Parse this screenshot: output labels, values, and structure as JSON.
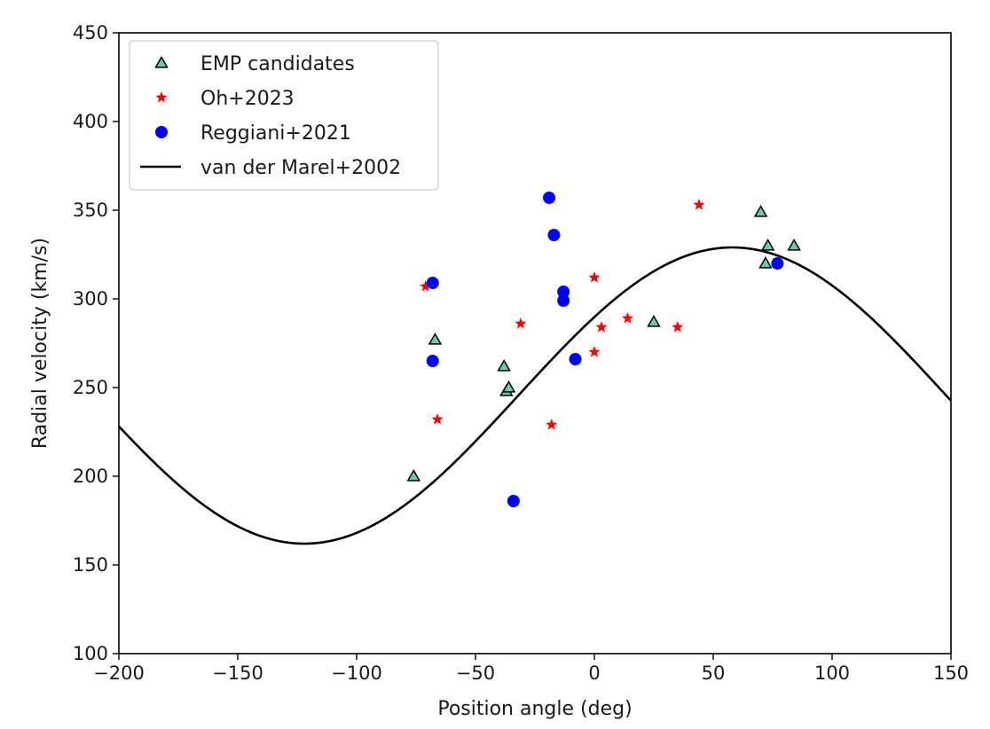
{
  "chart_data": {
    "type": "scatter",
    "title": "",
    "xlabel": "Position angle (deg)",
    "ylabel": "Radial velocity (km/s)",
    "xlim": [
      -200,
      150
    ],
    "ylim": [
      100,
      450
    ],
    "xticks": [
      -200,
      -150,
      -100,
      -50,
      0,
      50,
      100,
      150
    ],
    "xtick_labels": [
      "−200",
      "−150",
      "−100",
      "−50",
      "0",
      "50",
      "100",
      "150"
    ],
    "yticks": [
      100,
      150,
      200,
      250,
      300,
      350,
      400,
      450
    ],
    "ytick_labels": [
      "100",
      "150",
      "200",
      "250",
      "300",
      "350",
      "400",
      "450"
    ],
    "grid": false,
    "legend_position": "top-left",
    "series": [
      {
        "name": "EMP candidates",
        "marker": "triangle",
        "color": "#66cdaa",
        "edge_color": "#000000",
        "points": [
          [
            -76,
            200
          ],
          [
            -67,
            277
          ],
          [
            -38,
            262
          ],
          [
            -37,
            248
          ],
          [
            -36,
            250
          ],
          [
            25,
            287
          ],
          [
            70,
            349
          ],
          [
            72,
            320
          ],
          [
            73,
            330
          ],
          [
            84,
            330
          ]
        ]
      },
      {
        "name": "Oh+2023",
        "marker": "star",
        "color": "#ff0000",
        "points": [
          [
            -71,
            307
          ],
          [
            -66,
            232
          ],
          [
            -31,
            286
          ],
          [
            -18,
            229
          ],
          [
            0,
            312
          ],
          [
            0,
            270
          ],
          [
            3,
            284
          ],
          [
            14,
            289
          ],
          [
            35,
            284
          ],
          [
            44,
            353
          ]
        ]
      },
      {
        "name": "Reggiani+2021",
        "marker": "circle",
        "color": "#0000ff",
        "points": [
          [
            -68,
            309
          ],
          [
            -68,
            265
          ],
          [
            -34,
            186
          ],
          [
            -19,
            357
          ],
          [
            -17,
            336
          ],
          [
            -13,
            304
          ],
          [
            -13,
            299
          ],
          [
            -8,
            266
          ],
          [
            77,
            320
          ]
        ]
      },
      {
        "name": "van der Marel+2002",
        "marker": "line",
        "color": "#000000",
        "model": {
          "kind": "sinusoid",
          "mean": 245.5,
          "amplitude": 83.5,
          "peak_at": 58
        },
        "x_range": [
          -200,
          150
        ]
      }
    ]
  }
}
